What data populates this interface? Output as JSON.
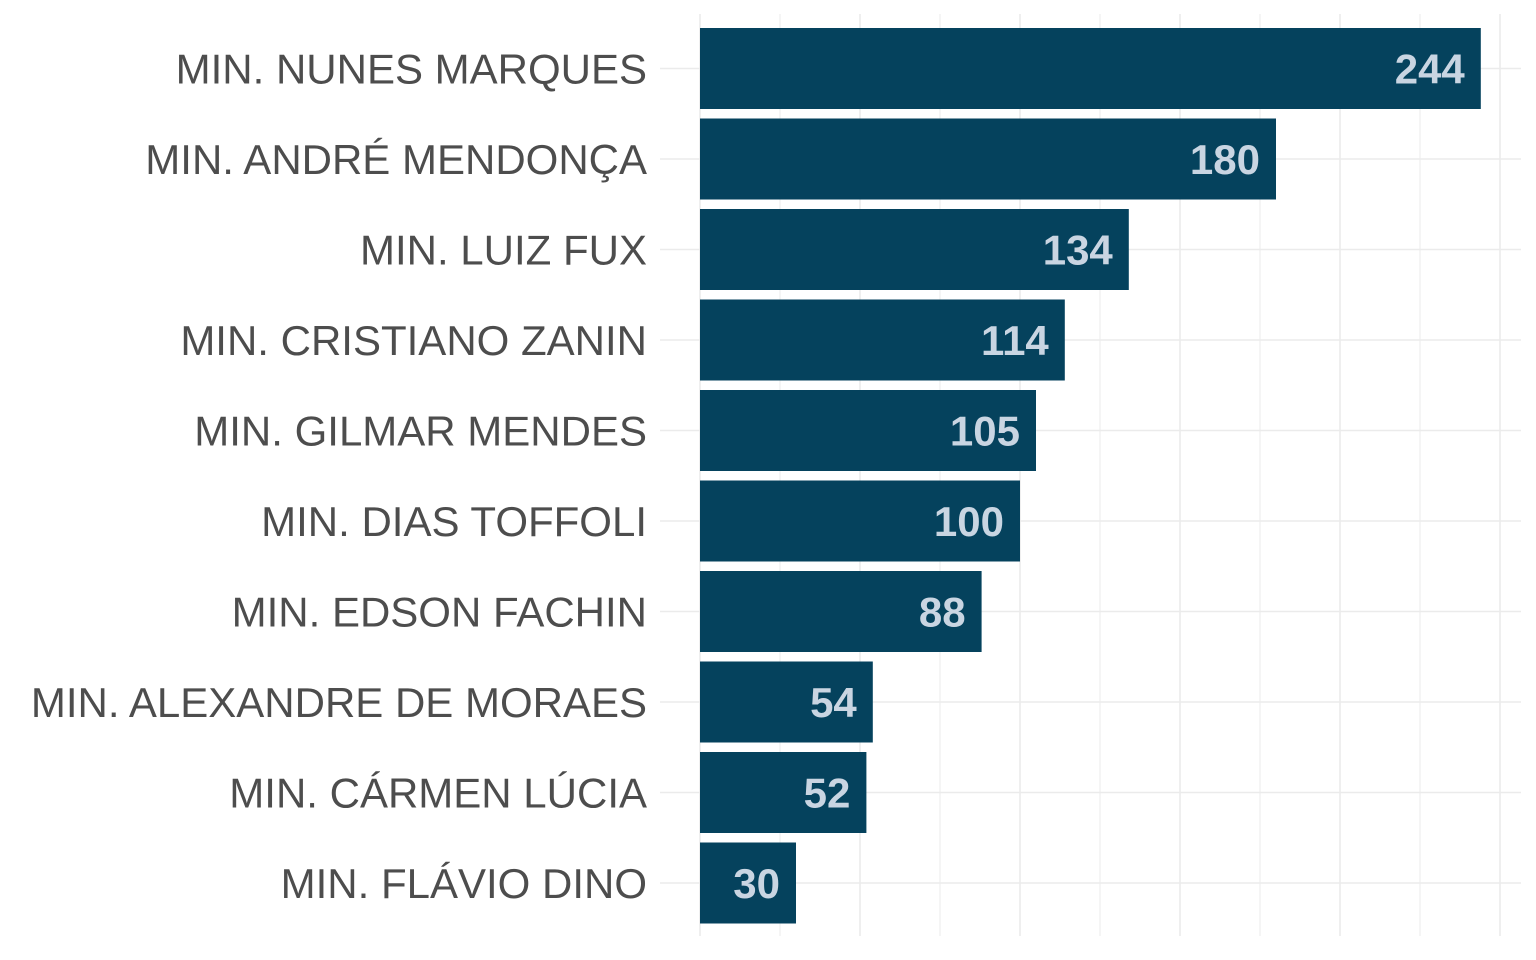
{
  "chart_data": {
    "type": "bar",
    "orientation": "horizontal",
    "categories": [
      "MIN. NUNES MARQUES",
      "MIN. ANDRÉ MENDONÇA",
      "MIN. LUIZ FUX",
      "MIN. CRISTIANO ZANIN",
      "MIN. GILMAR MENDES",
      "MIN. DIAS TOFFOLI",
      "MIN. EDSON FACHIN",
      "MIN. ALEXANDRE DE MORAES",
      "MIN. CÁRMEN LÚCIA",
      "MIN. FLÁVIO DINO"
    ],
    "values": [
      244,
      180,
      134,
      114,
      105,
      100,
      88,
      54,
      52,
      30
    ],
    "value_labels": [
      "244",
      "180",
      "134",
      "114",
      "105",
      "100",
      "88",
      "54",
      "52",
      "30"
    ],
    "title": "",
    "xlabel": "",
    "ylabel": "",
    "xlim": [
      0,
      257
    ],
    "x_axis_tick_labels_shown": false,
    "grid": true,
    "legend": "none",
    "colors": {
      "bar": "#05425d",
      "value_label": "#c9d5e2",
      "category_label": "#4d4d4d",
      "grid": "#ebebeb"
    }
  }
}
